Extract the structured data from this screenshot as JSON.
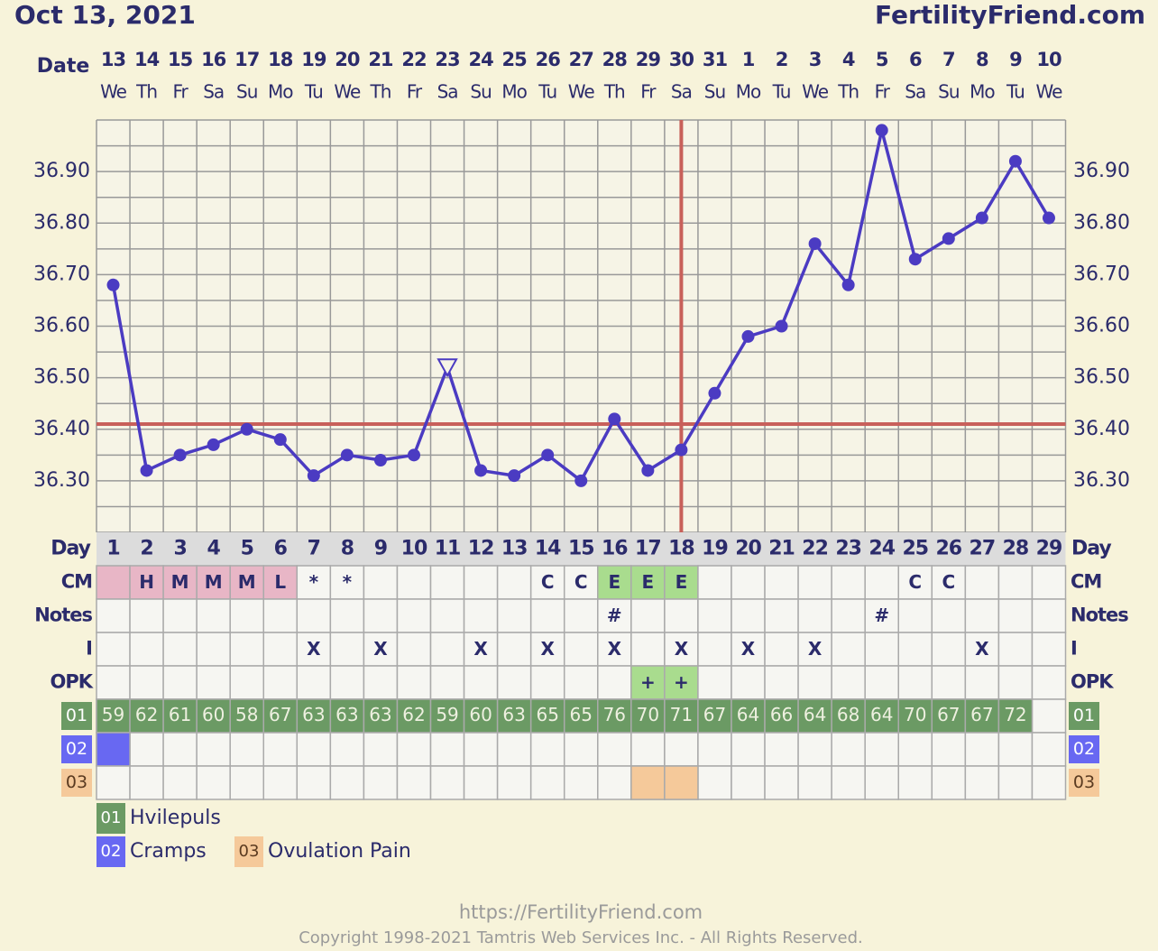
{
  "chart_data": {
    "type": "line",
    "title": "Oct 13, 2021",
    "site": "FertilityFriend.com",
    "date_label": "Date",
    "dates": [
      13,
      14,
      15,
      16,
      17,
      18,
      19,
      20,
      21,
      22,
      23,
      24,
      25,
      26,
      27,
      28,
      29,
      30,
      31,
      1,
      2,
      3,
      4,
      5,
      6,
      7,
      8,
      9,
      10
    ],
    "weekdays": [
      "We",
      "Th",
      "Fr",
      "Sa",
      "Su",
      "Mo",
      "Tu",
      "We",
      "Th",
      "Fr",
      "Sa",
      "Su",
      "Mo",
      "Tu",
      "We",
      "Th",
      "Fr",
      "Sa",
      "Su",
      "Mo",
      "Tu",
      "We",
      "Th",
      "Fr",
      "Sa",
      "Su",
      "Mo",
      "Tu",
      "We"
    ],
    "day_label": "Day",
    "days": [
      1,
      2,
      3,
      4,
      5,
      6,
      7,
      8,
      9,
      10,
      11,
      12,
      13,
      14,
      15,
      16,
      17,
      18,
      19,
      20,
      21,
      22,
      23,
      24,
      25,
      26,
      27,
      28,
      29
    ],
    "values": [
      36.68,
      36.32,
      36.35,
      36.37,
      36.4,
      36.38,
      36.31,
      36.35,
      36.34,
      36.35,
      36.52,
      36.32,
      36.31,
      36.35,
      36.3,
      36.42,
      36.32,
      36.36,
      36.47,
      36.58,
      36.6,
      36.76,
      36.68,
      36.98,
      36.73,
      36.77,
      36.81,
      36.92,
      36.81
    ],
    "color": "#4b3bc2",
    "hollow": [
      10
    ],
    "ylim": [
      36.2,
      37.0
    ],
    "yticks": [
      {
        "value": 36.3,
        "label": "36.30"
      },
      {
        "value": 36.4,
        "label": "36.40"
      },
      {
        "value": 36.5,
        "label": "36.50"
      },
      {
        "value": 36.6,
        "label": "36.60"
      },
      {
        "value": 36.7,
        "label": "36.70"
      },
      {
        "value": 36.8,
        "label": "36.80"
      },
      {
        "value": 36.9,
        "label": "36.90"
      }
    ],
    "grid": true,
    "coverline": {
      "value": 36.41,
      "color": "#c8605a"
    },
    "ovulation_day": 18,
    "rows": [
      {
        "label": "CM",
        "cells": [
          null,
          "H",
          "M",
          "M",
          "M",
          "L",
          "*",
          "*",
          null,
          null,
          null,
          null,
          null,
          "C",
          "C",
          "E",
          "E",
          "E",
          null,
          null,
          null,
          null,
          null,
          null,
          "C",
          "C",
          null,
          null,
          null
        ],
        "fills": [
          "#e8b6c6",
          "#e8b6c6",
          "#e8b6c6",
          "#e8b6c6",
          "#e8b6c6",
          "#e8b6c6",
          null,
          null,
          null,
          null,
          null,
          null,
          null,
          null,
          null,
          "#a9dc8e",
          "#a9dc8e",
          "#a9dc8e",
          null,
          null,
          null,
          null,
          null,
          null,
          null,
          null,
          null,
          null,
          null
        ]
      },
      {
        "label": "Notes",
        "cells": [
          null,
          null,
          null,
          null,
          null,
          null,
          null,
          null,
          null,
          null,
          null,
          null,
          null,
          null,
          null,
          "#",
          null,
          null,
          null,
          null,
          null,
          null,
          null,
          "#",
          null,
          null,
          null,
          null,
          null
        ]
      },
      {
        "label": "I",
        "cells": [
          null,
          null,
          null,
          null,
          null,
          null,
          "X",
          null,
          "X",
          null,
          null,
          "X",
          null,
          "X",
          null,
          "X",
          null,
          "X",
          null,
          "X",
          null,
          "X",
          null,
          null,
          null,
          null,
          "X",
          null,
          null
        ]
      },
      {
        "label": "OPK",
        "cells": [
          null,
          null,
          null,
          null,
          null,
          null,
          null,
          null,
          null,
          null,
          null,
          null,
          null,
          null,
          null,
          null,
          "+",
          "+",
          null,
          null,
          null,
          null,
          null,
          null,
          null,
          null,
          null,
          null,
          null
        ],
        "fills": [
          null,
          null,
          null,
          null,
          null,
          null,
          null,
          null,
          null,
          null,
          null,
          null,
          null,
          null,
          null,
          null,
          "#a9dc8e",
          "#a9dc8e",
          null,
          null,
          null,
          null,
          null,
          null,
          null,
          null,
          null,
          null,
          null
        ]
      }
    ],
    "symptoms": [
      {
        "code": "01",
        "name": "Hvilepuls",
        "color": "#6b9a64",
        "text_color": "#ffffff",
        "values": [
          59,
          62,
          61,
          60,
          58,
          67,
          63,
          63,
          63,
          62,
          59,
          60,
          63,
          65,
          65,
          76,
          70,
          71,
          67,
          64,
          66,
          64,
          68,
          64,
          70,
          67,
          67,
          72,
          null
        ]
      },
      {
        "code": "02",
        "name": "Cramps",
        "color": "#6868f2",
        "text_color": "#ffffff",
        "days": [
          1
        ]
      },
      {
        "code": "03",
        "name": "Ovulation Pain",
        "color": "#f5c99a",
        "text_color": "#5a3a20",
        "days": [
          17,
          18
        ]
      }
    ]
  },
  "footer": {
    "url": "https://FertilityFriend.com",
    "copyright": "Copyright 1998-2021 Tamtris Web Services Inc. - All Rights Reserved."
  }
}
